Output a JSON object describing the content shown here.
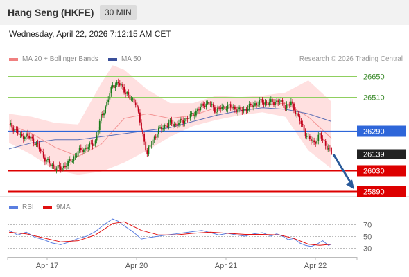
{
  "header": {
    "title": "Hang Seng (HKFE)",
    "interval": "30 MIN"
  },
  "datetime": "Wednesday, April 22, 2026 7:12:15 AM CET",
  "legend": {
    "ma20_bollinger": "MA 20 + Bollinger Bands",
    "ma50": "MA 50",
    "credit": "Research © 2026 Trading Central"
  },
  "rsi_legend": {
    "rsi": "RSI",
    "ma": "9MA"
  },
  "colors": {
    "up": "#1a7a1a",
    "down": "#c0001a",
    "bollinger_fill": "#ffd6d6",
    "ma20": "#f08080",
    "ma50": "#5b6fb5",
    "resistance": "#8fcf5f",
    "pivot": "#2e66d9",
    "support": "#dd0000",
    "arrow": "#2a5a9a",
    "rsi": "#5a7ee0",
    "rsi_ma": "#e01010"
  },
  "chart_data": [
    {
      "type": "candlestick",
      "title": "Hang Seng (HKFE)",
      "interval": "30 MIN",
      "x_labels": [
        "Apr 17",
        "Apr 20",
        "Apr 21",
        "Apr 22"
      ],
      "ylim": [
        25860,
        26730
      ],
      "levels": [
        {
          "value": 26650,
          "label": "26650",
          "kind": "resistance"
        },
        {
          "value": 26510,
          "label": "26510",
          "kind": "resistance"
        },
        {
          "value": 26290,
          "label": "26290",
          "kind": "pivot"
        },
        {
          "value": 26139,
          "label": "26139",
          "kind": "last"
        },
        {
          "value": 26030,
          "label": "26030",
          "kind": "support"
        },
        {
          "value": 25890,
          "label": "25890",
          "kind": "support"
        }
      ],
      "series": [
        {
          "name": "MA 20 + Bollinger Bands"
        },
        {
          "name": "MA 50"
        }
      ],
      "close_path": [
        [
          0,
          26330
        ],
        [
          4,
          26300
        ],
        [
          8,
          26250
        ],
        [
          12,
          26260
        ],
        [
          16,
          26230
        ],
        [
          20,
          26190
        ],
        [
          24,
          26120
        ],
        [
          28,
          26070
        ],
        [
          32,
          26050
        ],
        [
          36,
          26040
        ],
        [
          40,
          26070
        ],
        [
          44,
          26100
        ],
        [
          48,
          26150
        ],
        [
          52,
          26170
        ],
        [
          56,
          26190
        ],
        [
          60,
          26220
        ],
        [
          64,
          26380
        ],
        [
          68,
          26470
        ],
        [
          72,
          26590
        ],
        [
          76,
          26600
        ],
        [
          80,
          26560
        ],
        [
          84,
          26500
        ],
        [
          88,
          26480
        ],
        [
          92,
          26300
        ],
        [
          96,
          26140
        ],
        [
          100,
          26230
        ],
        [
          104,
          26290
        ],
        [
          108,
          26320
        ],
        [
          112,
          26340
        ],
        [
          116,
          26330
        ],
        [
          120,
          26350
        ],
        [
          124,
          26370
        ],
        [
          128,
          26400
        ],
        [
          132,
          26430
        ],
        [
          136,
          26470
        ],
        [
          140,
          26460
        ],
        [
          144,
          26420
        ],
        [
          148,
          26440
        ],
        [
          152,
          26450
        ],
        [
          156,
          26440
        ],
        [
          160,
          26420
        ],
        [
          164,
          26430
        ],
        [
          168,
          26450
        ],
        [
          172,
          26470
        ],
        [
          176,
          26480
        ],
        [
          180,
          26470
        ],
        [
          184,
          26480
        ],
        [
          188,
          26480
        ],
        [
          192,
          26450
        ],
        [
          196,
          26470
        ],
        [
          200,
          26400
        ],
        [
          204,
          26310
        ],
        [
          208,
          26240
        ],
        [
          212,
          26210
        ],
        [
          216,
          26260
        ],
        [
          220,
          26200
        ],
        [
          224,
          26139
        ]
      ],
      "ma20": [
        [
          0,
          26330
        ],
        [
          16,
          26270
        ],
        [
          32,
          26180
        ],
        [
          48,
          26120
        ],
        [
          64,
          26200
        ],
        [
          80,
          26370
        ],
        [
          96,
          26400
        ],
        [
          112,
          26370
        ],
        [
          128,
          26390
        ],
        [
          144,
          26440
        ],
        [
          160,
          26440
        ],
        [
          176,
          26460
        ],
        [
          192,
          26470
        ],
        [
          208,
          26380
        ],
        [
          224,
          26240
        ]
      ],
      "bollinger_upper": [
        [
          0,
          26400
        ],
        [
          16,
          26380
        ],
        [
          32,
          26340
        ],
        [
          48,
          26330
        ],
        [
          64,
          26600
        ],
        [
          72,
          26720
        ],
        [
          80,
          26690
        ],
        [
          96,
          26560
        ],
        [
          112,
          26470
        ],
        [
          128,
          26470
        ],
        [
          144,
          26520
        ],
        [
          160,
          26510
        ],
        [
          176,
          26520
        ],
        [
          192,
          26540
        ],
        [
          208,
          26620
        ],
        [
          224,
          26480
        ]
      ],
      "bollinger_lower": [
        [
          0,
          26210
        ],
        [
          16,
          26130
        ],
        [
          32,
          26030
        ],
        [
          48,
          26000
        ],
        [
          64,
          26020
        ],
        [
          80,
          26080
        ],
        [
          96,
          26160
        ],
        [
          112,
          26250
        ],
        [
          128,
          26320
        ],
        [
          144,
          26360
        ],
        [
          160,
          26390
        ],
        [
          176,
          26410
        ],
        [
          192,
          26380
        ],
        [
          208,
          26160
        ],
        [
          224,
          26040
        ]
      ],
      "ma50": [
        [
          0,
          26170
        ],
        [
          16,
          26210
        ],
        [
          32,
          26230
        ],
        [
          48,
          26230
        ],
        [
          64,
          26250
        ],
        [
          80,
          26270
        ],
        [
          96,
          26290
        ],
        [
          112,
          26310
        ],
        [
          128,
          26350
        ],
        [
          144,
          26390
        ],
        [
          160,
          26420
        ],
        [
          176,
          26440
        ],
        [
          192,
          26430
        ],
        [
          208,
          26400
        ],
        [
          224,
          26350
        ]
      ],
      "forecast_arrow": {
        "from": 26139,
        "to": 25890
      }
    },
    {
      "type": "line",
      "series": [
        {
          "name": "RSI"
        },
        {
          "name": "9MA"
        }
      ],
      "ylim": [
        15,
        85
      ],
      "y_ticks": [
        "70",
        "50",
        "30"
      ],
      "y_tick_values": [
        70,
        50,
        30
      ],
      "rsi": [
        [
          0,
          60
        ],
        [
          6,
          52
        ],
        [
          12,
          57
        ],
        [
          18,
          48
        ],
        [
          24,
          44
        ],
        [
          30,
          38
        ],
        [
          36,
          35
        ],
        [
          42,
          40
        ],
        [
          48,
          46
        ],
        [
          54,
          50
        ],
        [
          60,
          58
        ],
        [
          66,
          70
        ],
        [
          72,
          80
        ],
        [
          76,
          76
        ],
        [
          80,
          68
        ],
        [
          86,
          58
        ],
        [
          92,
          45
        ],
        [
          98,
          48
        ],
        [
          104,
          50
        ],
        [
          110,
          52
        ],
        [
          116,
          54
        ],
        [
          122,
          56
        ],
        [
          128,
          58
        ],
        [
          134,
          60
        ],
        [
          140,
          56
        ],
        [
          146,
          52
        ],
        [
          152,
          55
        ],
        [
          158,
          52
        ],
        [
          164,
          50
        ],
        [
          170,
          54
        ],
        [
          176,
          56
        ],
        [
          182,
          50
        ],
        [
          186,
          54
        ],
        [
          190,
          50
        ],
        [
          194,
          44
        ],
        [
          198,
          46
        ],
        [
          202,
          38
        ],
        [
          206,
          34
        ],
        [
          210,
          32
        ],
        [
          214,
          36
        ],
        [
          218,
          42
        ],
        [
          222,
          34
        ],
        [
          224,
          36
        ]
      ],
      "rsi_ma": [
        [
          0,
          57
        ],
        [
          12,
          54
        ],
        [
          24,
          47
        ],
        [
          36,
          40
        ],
        [
          48,
          42
        ],
        [
          60,
          52
        ],
        [
          72,
          72
        ],
        [
          80,
          75
        ],
        [
          92,
          60
        ],
        [
          104,
          52
        ],
        [
          116,
          52
        ],
        [
          128,
          55
        ],
        [
          140,
          57
        ],
        [
          152,
          55
        ],
        [
          164,
          53
        ],
        [
          176,
          53
        ],
        [
          188,
          52
        ],
        [
          198,
          46
        ],
        [
          208,
          36
        ],
        [
          216,
          34
        ],
        [
          224,
          36
        ]
      ]
    }
  ]
}
